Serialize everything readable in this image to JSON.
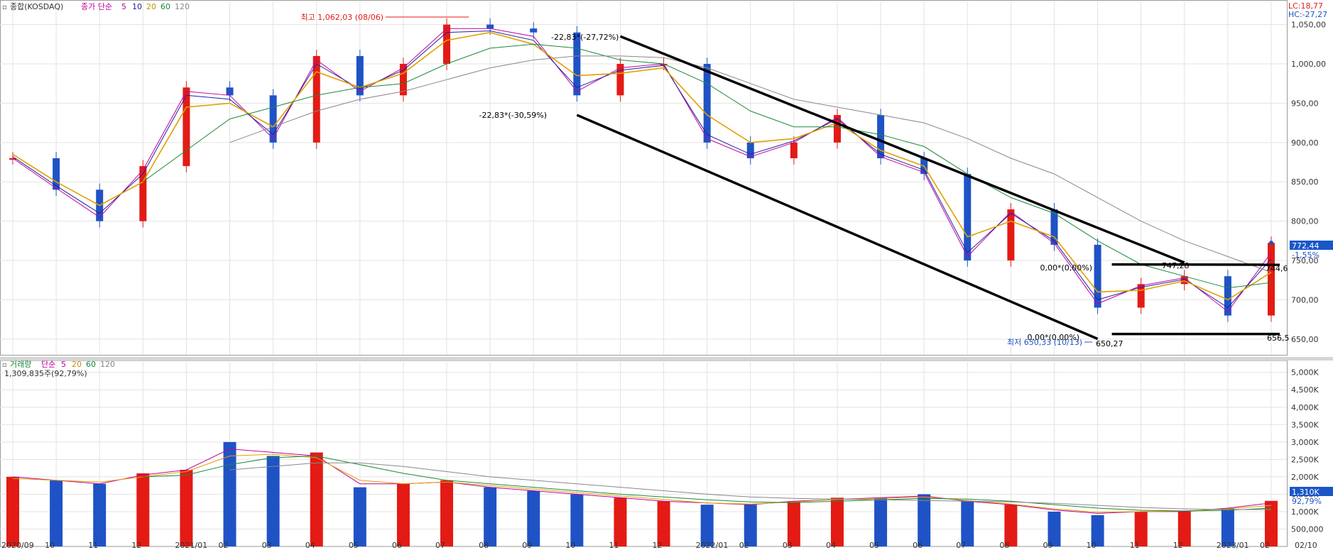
{
  "price_panel": {
    "legend": {
      "prefix": "▫",
      "title": "종합(KOSDAQ)",
      "ma_label": "종가 단순",
      "periods": [
        "5",
        "10",
        "20",
        "60",
        "120"
      ]
    },
    "corner": {
      "lc": "LC:18,77",
      "hc": "HC:-27,27"
    },
    "last_price": "772,44",
    "last_change": "-1,55%",
    "annotations": {
      "high": "최고 1,062,03 (08/06)",
      "low": "최저 650,33 (10/13)",
      "low_value": "650,27",
      "upper_pct": "-22,83*(-27,72%)",
      "lower_pct": "-22,83*(-30,59%)",
      "resist_pct": "0,00*(0,00%)",
      "resist_value": "747,28",
      "resist_end": "744,6",
      "support_pct": "0,00*(0,00%)",
      "support_end": "656,5"
    }
  },
  "volume_panel": {
    "legend": {
      "prefix": "▫",
      "title": "거래량",
      "ma_label": "단순",
      "periods": [
        "5",
        "20",
        "60",
        "120"
      ]
    },
    "current": "1,309,835주(92,79%)",
    "last_volume": "1,310K",
    "last_pct": "92,79%"
  },
  "colors": {
    "up": "#e31b14",
    "down": "#1f53c5",
    "ma5": "#c000a0",
    "ma10": "#2020a0",
    "ma20": "#e0a000",
    "ma60": "#1a8a3a",
    "ma120": "#888888",
    "grid": "#e3e3e3",
    "marker": "#1a56c8"
  },
  "x_axis": {
    "labels": [
      "2020/09",
      "10",
      "11",
      "12",
      "2021/01",
      "02",
      "03",
      "04",
      "05",
      "06",
      "07",
      "08",
      "09",
      "10",
      "11",
      "12",
      "2022/01",
      "02",
      "03",
      "04",
      "05",
      "06",
      "07",
      "08",
      "09",
      "10",
      "11",
      "12",
      "2023/01",
      "02",
      "02/10"
    ]
  },
  "chart_data": [
    {
      "type": "line",
      "title": "종합(KOSDAQ)",
      "y_ticks": [
        650,
        700,
        750,
        800,
        850,
        900,
        950,
        1000,
        1050
      ],
      "y_tick_labels": [
        "650,00",
        "700,00",
        "750,00",
        "800,00",
        "850,00",
        "900,00",
        "950,00",
        "1,000,00",
        "1,050,00"
      ],
      "ylim": [
        630,
        1065
      ],
      "grid": true,
      "x": [
        "2020/09",
        "2020/10",
        "2020/11",
        "2020/12",
        "2021/01",
        "2021/02",
        "2021/03",
        "2021/04",
        "2021/05",
        "2021/06",
        "2021/07",
        "2021/08",
        "2021/09",
        "2021/10",
        "2021/11",
        "2021/12",
        "2022/01",
        "2022/02",
        "2022/03",
        "2022/04",
        "2022/05",
        "2022/06",
        "2022/07",
        "2022/08",
        "2022/09",
        "2022/10",
        "2022/11",
        "2022/12",
        "2023/01",
        "2023/02"
      ],
      "series": [
        {
          "name": "종합(KOSDAQ)",
          "values": [
            880,
            840,
            800,
            870,
            970,
            960,
            900,
            1010,
            960,
            1000,
            1050,
            1045,
            1040,
            960,
            1000,
            1000,
            900,
            880,
            900,
            935,
            880,
            860,
            750,
            815,
            770,
            690,
            720,
            730,
            680,
            772.44
          ]
        },
        {
          "name": "5",
          "values": [
            880,
            842,
            805,
            865,
            965,
            960,
            905,
            1005,
            965,
            995,
            1045,
            1045,
            1035,
            965,
            995,
            1000,
            905,
            882,
            900,
            932,
            882,
            862,
            755,
            812,
            772,
            695,
            718,
            728,
            685,
            760
          ]
        },
        {
          "name": "10",
          "values": [
            882,
            845,
            810,
            860,
            960,
            955,
            910,
            1000,
            968,
            992,
            1040,
            1042,
            1030,
            970,
            992,
            998,
            910,
            885,
            902,
            930,
            885,
            865,
            760,
            810,
            775,
            700,
            716,
            726,
            690,
            752
          ]
        },
        {
          "name": "20",
          "values": [
            885,
            850,
            820,
            850,
            945,
            950,
            920,
            990,
            970,
            988,
            1030,
            1040,
            1025,
            985,
            988,
            995,
            935,
            900,
            905,
            925,
            890,
            870,
            780,
            800,
            780,
            710,
            712,
            724,
            700,
            735
          ]
        },
        {
          "name": "60",
          "values": [
            null,
            null,
            null,
            850,
            890,
            930,
            945,
            960,
            970,
            975,
            1000,
            1020,
            1025,
            1020,
            1005,
            1000,
            975,
            940,
            920,
            920,
            910,
            895,
            860,
            830,
            810,
            775,
            745,
            730,
            715,
            722
          ]
        },
        {
          "name": "120",
          "values": [
            null,
            null,
            null,
            null,
            null,
            900,
            920,
            940,
            955,
            965,
            980,
            995,
            1005,
            1010,
            1010,
            1008,
            995,
            975,
            955,
            945,
            935,
            925,
            905,
            880,
            860,
            830,
            800,
            775,
            755,
            735
          ]
        }
      ],
      "annotations": [
        {
          "text": "최고 1,062,03 (08/06)",
          "x": "2021/08",
          "y": 1062.03
        },
        {
          "text": "최저 650,33 (10/13)",
          "x": "2022/10",
          "y": 650.33
        }
      ],
      "trendlines": [
        {
          "from": [
            "2021/11",
            1035
          ],
          "to": [
            "2022/12",
            747.28
          ]
        },
        {
          "from": [
            "2021/10",
            935
          ],
          "to": [
            "2022/10",
            650.27
          ]
        },
        {
          "from": [
            "2022/10",
            745
          ],
          "to": [
            "2023/02",
            744.6
          ]
        },
        {
          "from": [
            "2022/10",
            656.5
          ],
          "to": [
            "2023/02",
            656.5
          ]
        }
      ]
    },
    {
      "type": "bar",
      "title": "거래량",
      "y_ticks": [
        500000,
        1000000,
        1500000,
        2000000,
        2500000,
        3000000,
        3500000,
        4000000,
        4500000,
        5000000
      ],
      "y_tick_labels": [
        "500,000",
        "1,000K",
        "1,500K",
        "2,000K",
        "2,500K",
        "3,000K",
        "3,500K",
        "4,000K",
        "4,500K",
        "5,000K"
      ],
      "ylim": [
        0,
        5300000
      ],
      "grid": true,
      "categories": [
        "2020/09",
        "2020/10",
        "2020/11",
        "2020/12",
        "2021/01",
        "2021/02",
        "2021/03",
        "2021/04",
        "2021/05",
        "2021/06",
        "2021/07",
        "2021/08",
        "2021/09",
        "2021/10",
        "2021/11",
        "2021/12",
        "2022/01",
        "2022/02",
        "2022/03",
        "2022/04",
        "2022/05",
        "2022/06",
        "2022/07",
        "2022/08",
        "2022/09",
        "2022/10",
        "2022/11",
        "2022/12",
        "2023/01",
        "2023/02"
      ],
      "series": [
        {
          "name": "거래량",
          "values": [
            2000000,
            1900000,
            1800000,
            2100000,
            2200000,
            3000000,
            2600000,
            2700000,
            1700000,
            1800000,
            1900000,
            1700000,
            1600000,
            1500000,
            1400000,
            1300000,
            1200000,
            1200000,
            1300000,
            1400000,
            1400000,
            1500000,
            1300000,
            1200000,
            1000000,
            900000,
            1000000,
            1000000,
            1100000,
            1309835
          ]
        },
        {
          "name": "5",
          "values": [
            2000000,
            1900000,
            1800000,
            2050000,
            2200000,
            2800000,
            2700000,
            2600000,
            1800000,
            1800000,
            1850000,
            1700000,
            1600000,
            1500000,
            1400000,
            1300000,
            1250000,
            1200000,
            1300000,
            1350000,
            1400000,
            1450000,
            1300000,
            1200000,
            1050000,
            950000,
            1000000,
            1000000,
            1100000,
            1250000
          ]
        },
        {
          "name": "20",
          "values": [
            1950000,
            1900000,
            1850000,
            2000000,
            2150000,
            2600000,
            2650000,
            2550000,
            1900000,
            1800000,
            1850000,
            1750000,
            1650000,
            1550000,
            1450000,
            1350000,
            1250000,
            1220000,
            1280000,
            1350000,
            1380000,
            1420000,
            1320000,
            1220000,
            1080000,
            980000,
            1000000,
            1020000,
            1080000,
            1180000
          ]
        },
        {
          "name": "60",
          "values": [
            null,
            null,
            null,
            2000000,
            2050000,
            2350000,
            2550000,
            2600000,
            2350000,
            2100000,
            1900000,
            1800000,
            1700000,
            1600000,
            1500000,
            1420000,
            1340000,
            1280000,
            1260000,
            1300000,
            1340000,
            1380000,
            1360000,
            1300000,
            1200000,
            1100000,
            1040000,
            1020000,
            1040000,
            1100000
          ]
        },
        {
          "name": "120",
          "values": [
            null,
            null,
            null,
            null,
            null,
            2200000,
            2300000,
            2400000,
            2400000,
            2300000,
            2150000,
            2000000,
            1900000,
            1800000,
            1700000,
            1600000,
            1500000,
            1420000,
            1380000,
            1360000,
            1340000,
            1320000,
            1300000,
            1280000,
            1240000,
            1180000,
            1120000,
            1080000,
            1060000,
            1060000
          ]
        }
      ]
    }
  ]
}
